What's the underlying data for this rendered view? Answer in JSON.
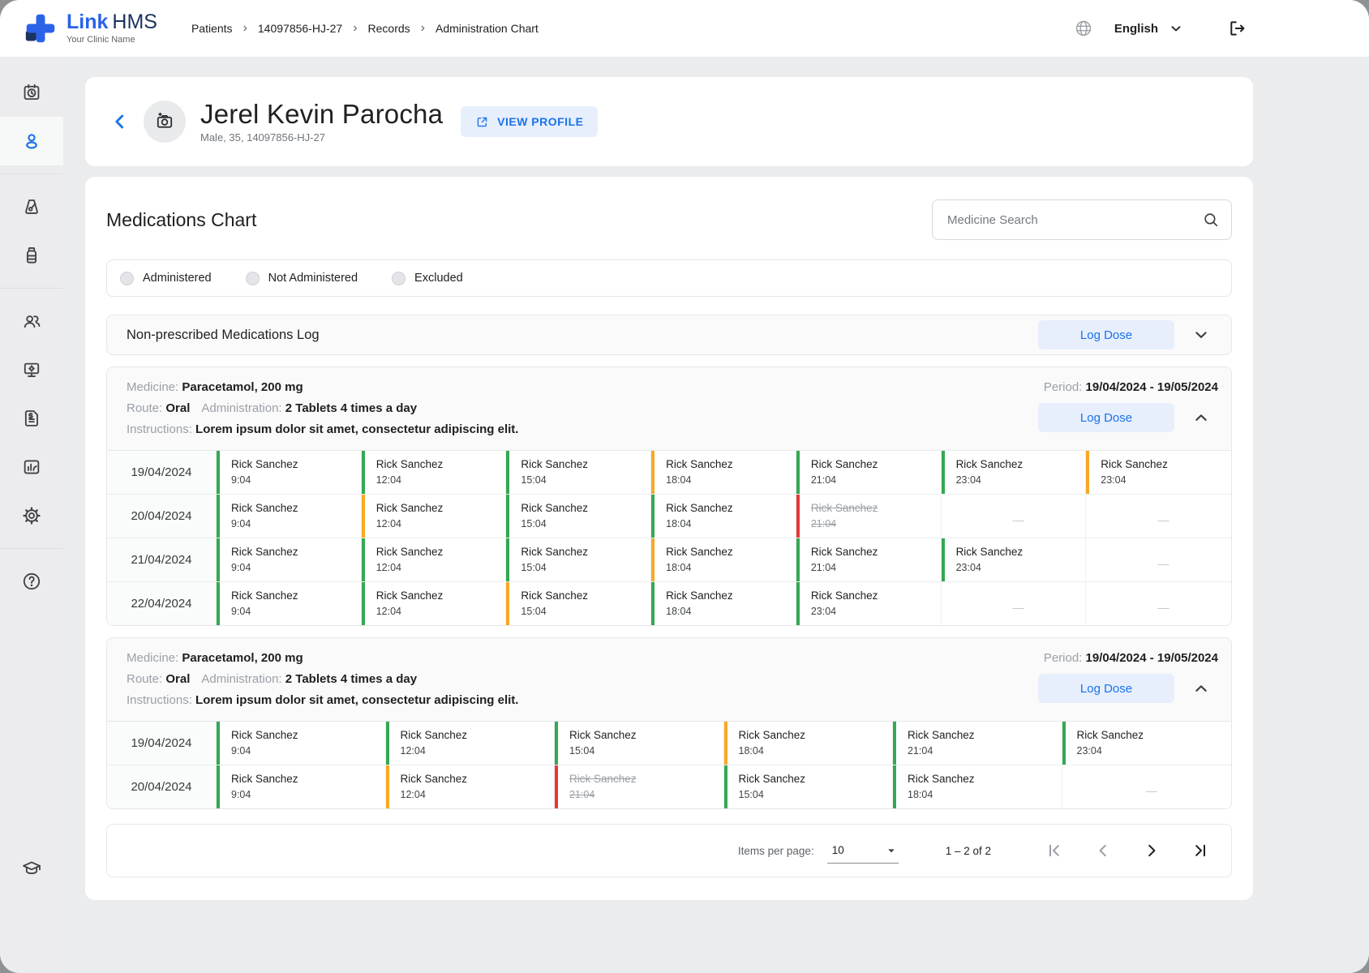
{
  "header": {
    "brand": {
      "link": "Link",
      "hms": "HMS",
      "tagline": "Your Clinic Name"
    },
    "breadcrumbs": [
      "Patients",
      "14097856-HJ-27",
      "Records",
      "Administration Chart"
    ],
    "language": "English"
  },
  "sidebar": {
    "items": [
      {
        "icon": "calendar-schedule",
        "name": "appointments"
      },
      {
        "icon": "patient",
        "name": "patients",
        "active": true
      },
      {
        "divider": true
      },
      {
        "icon": "lab",
        "name": "laboratory"
      },
      {
        "icon": "pharmacy",
        "name": "pharmacy"
      },
      {
        "divider": true
      },
      {
        "icon": "staff",
        "name": "staff"
      },
      {
        "icon": "monitor",
        "name": "workstation"
      },
      {
        "icon": "billing",
        "name": "billing"
      },
      {
        "icon": "reports",
        "name": "reports"
      },
      {
        "icon": "settings",
        "name": "settings"
      },
      {
        "divider": true
      },
      {
        "icon": "help",
        "name": "help"
      }
    ],
    "bottom_item": {
      "icon": "education",
      "name": "education"
    }
  },
  "patient": {
    "name": "Jerel Kevin Parocha",
    "meta": "Male, 35, 14097856-HJ-27",
    "view_profile_label": "VIEW PROFILE"
  },
  "medications": {
    "title": "Medications Chart",
    "search_placeholder": "Medicine Search",
    "legend": [
      {
        "label": "Administered"
      },
      {
        "label": "Not Administered"
      },
      {
        "label": "Excluded"
      }
    ],
    "log_section": {
      "title": "Non-prescribed Medications Log",
      "log_dose_label": "Log Dose"
    },
    "empty_placeholder": "—",
    "cards": [
      {
        "medicine_label": "Medicine:",
        "medicine": "Paracetamol, 200 mg",
        "route_label": "Route:",
        "route": "Oral",
        "administration_label": "Administration:",
        "administration": "2 Tablets 4 times a day",
        "instructions_label": "Instructions:",
        "instructions": "Lorem ipsum dolor sit amet, consectetur adipiscing elit.",
        "period_label": "Period:",
        "period": "19/04/2024 - 19/05/2024",
        "log_dose_label": "Log Dose",
        "columns": 7,
        "rows": [
          {
            "date": "19/04/2024",
            "doses": [
              {
                "name": "Rick Sanchez",
                "time": "9:04",
                "status": "administered"
              },
              {
                "name": "Rick Sanchez",
                "time": "12:04",
                "status": "administered"
              },
              {
                "name": "Rick Sanchez",
                "time": "15:04",
                "status": "administered"
              },
              {
                "name": "Rick Sanchez",
                "time": "18:04",
                "status": "not-administered"
              },
              {
                "name": "Rick Sanchez",
                "time": "21:04",
                "status": "administered"
              },
              {
                "name": "Rick Sanchez",
                "time": "23:04",
                "status": "administered"
              },
              {
                "name": "Rick Sanchez",
                "time": "23:04",
                "status": "not-administered"
              }
            ]
          },
          {
            "date": "20/04/2024",
            "doses": [
              {
                "name": "Rick Sanchez",
                "time": "9:04",
                "status": "administered"
              },
              {
                "name": "Rick Sanchez",
                "time": "12:04",
                "status": "not-administered"
              },
              {
                "name": "Rick Sanchez",
                "time": "15:04",
                "status": "administered"
              },
              {
                "name": "Rick Sanchez",
                "time": "18:04",
                "status": "administered"
              },
              {
                "name": "Rick Sanchez",
                "time": "21:04",
                "status": "excluded"
              },
              {
                "status": "empty"
              },
              {
                "status": "empty"
              }
            ]
          },
          {
            "date": "21/04/2024",
            "doses": [
              {
                "name": "Rick Sanchez",
                "time": "9:04",
                "status": "administered"
              },
              {
                "name": "Rick Sanchez",
                "time": "12:04",
                "status": "administered"
              },
              {
                "name": "Rick Sanchez",
                "time": "15:04",
                "status": "administered"
              },
              {
                "name": "Rick Sanchez",
                "time": "18:04",
                "status": "not-administered"
              },
              {
                "name": "Rick Sanchez",
                "time": "21:04",
                "status": "administered"
              },
              {
                "name": "Rick Sanchez",
                "time": "23:04",
                "status": "administered"
              },
              {
                "status": "empty"
              }
            ]
          },
          {
            "date": "22/04/2024",
            "doses": [
              {
                "name": "Rick Sanchez",
                "time": "9:04",
                "status": "administered"
              },
              {
                "name": "Rick Sanchez",
                "time": "12:04",
                "status": "administered"
              },
              {
                "name": "Rick Sanchez",
                "time": "15:04",
                "status": "not-administered"
              },
              {
                "name": "Rick Sanchez",
                "time": "18:04",
                "status": "administered"
              },
              {
                "name": "Rick Sanchez",
                "time": "23:04",
                "status": "administered"
              },
              {
                "status": "empty"
              },
              {
                "status": "empty"
              }
            ]
          }
        ]
      },
      {
        "medicine_label": "Medicine:",
        "medicine": "Paracetamol, 200 mg",
        "route_label": "Route:",
        "route": "Oral",
        "administration_label": "Administration:",
        "administration": "2 Tablets 4 times a day",
        "instructions_label": "Instructions:",
        "instructions": "Lorem ipsum dolor sit amet, consectetur adipiscing elit.",
        "period_label": "Period:",
        "period": "19/04/2024 - 19/05/2024",
        "log_dose_label": "Log Dose",
        "columns": 6,
        "rows": [
          {
            "date": "19/04/2024",
            "doses": [
              {
                "name": "Rick Sanchez",
                "time": "9:04",
                "status": "administered"
              },
              {
                "name": "Rick Sanchez",
                "time": "12:04",
                "status": "administered"
              },
              {
                "name": "Rick Sanchez",
                "time": "15:04",
                "status": "administered"
              },
              {
                "name": "Rick Sanchez",
                "time": "18:04",
                "status": "not-administered"
              },
              {
                "name": "Rick Sanchez",
                "time": "21:04",
                "status": "administered"
              },
              {
                "name": "Rick Sanchez",
                "time": "23:04",
                "status": "administered"
              }
            ]
          },
          {
            "date": "20/04/2024",
            "doses": [
              {
                "name": "Rick Sanchez",
                "time": "9:04",
                "status": "administered"
              },
              {
                "name": "Rick Sanchez",
                "time": "12:04",
                "status": "not-administered"
              },
              {
                "name": "Rick Sanchez",
                "time": "21:04",
                "status": "excluded"
              },
              {
                "name": "Rick Sanchez",
                "time": "15:04",
                "status": "administered"
              },
              {
                "name": "Rick Sanchez",
                "time": "18:04",
                "status": "administered"
              },
              {
                "status": "empty"
              }
            ]
          }
        ]
      }
    ],
    "pagination": {
      "items_per_page_label": "Items per page:",
      "items_per_page": "10",
      "range_label": "1 – 2 of 2"
    }
  },
  "colors": {
    "administered": "#34a853",
    "not_administered": "#f9a825",
    "excluded": "#e53935",
    "accent": "#1a73e8",
    "accent_soft": "#e7eefc",
    "brand": "#2a63e8",
    "brand_dark": "#1d3461"
  }
}
